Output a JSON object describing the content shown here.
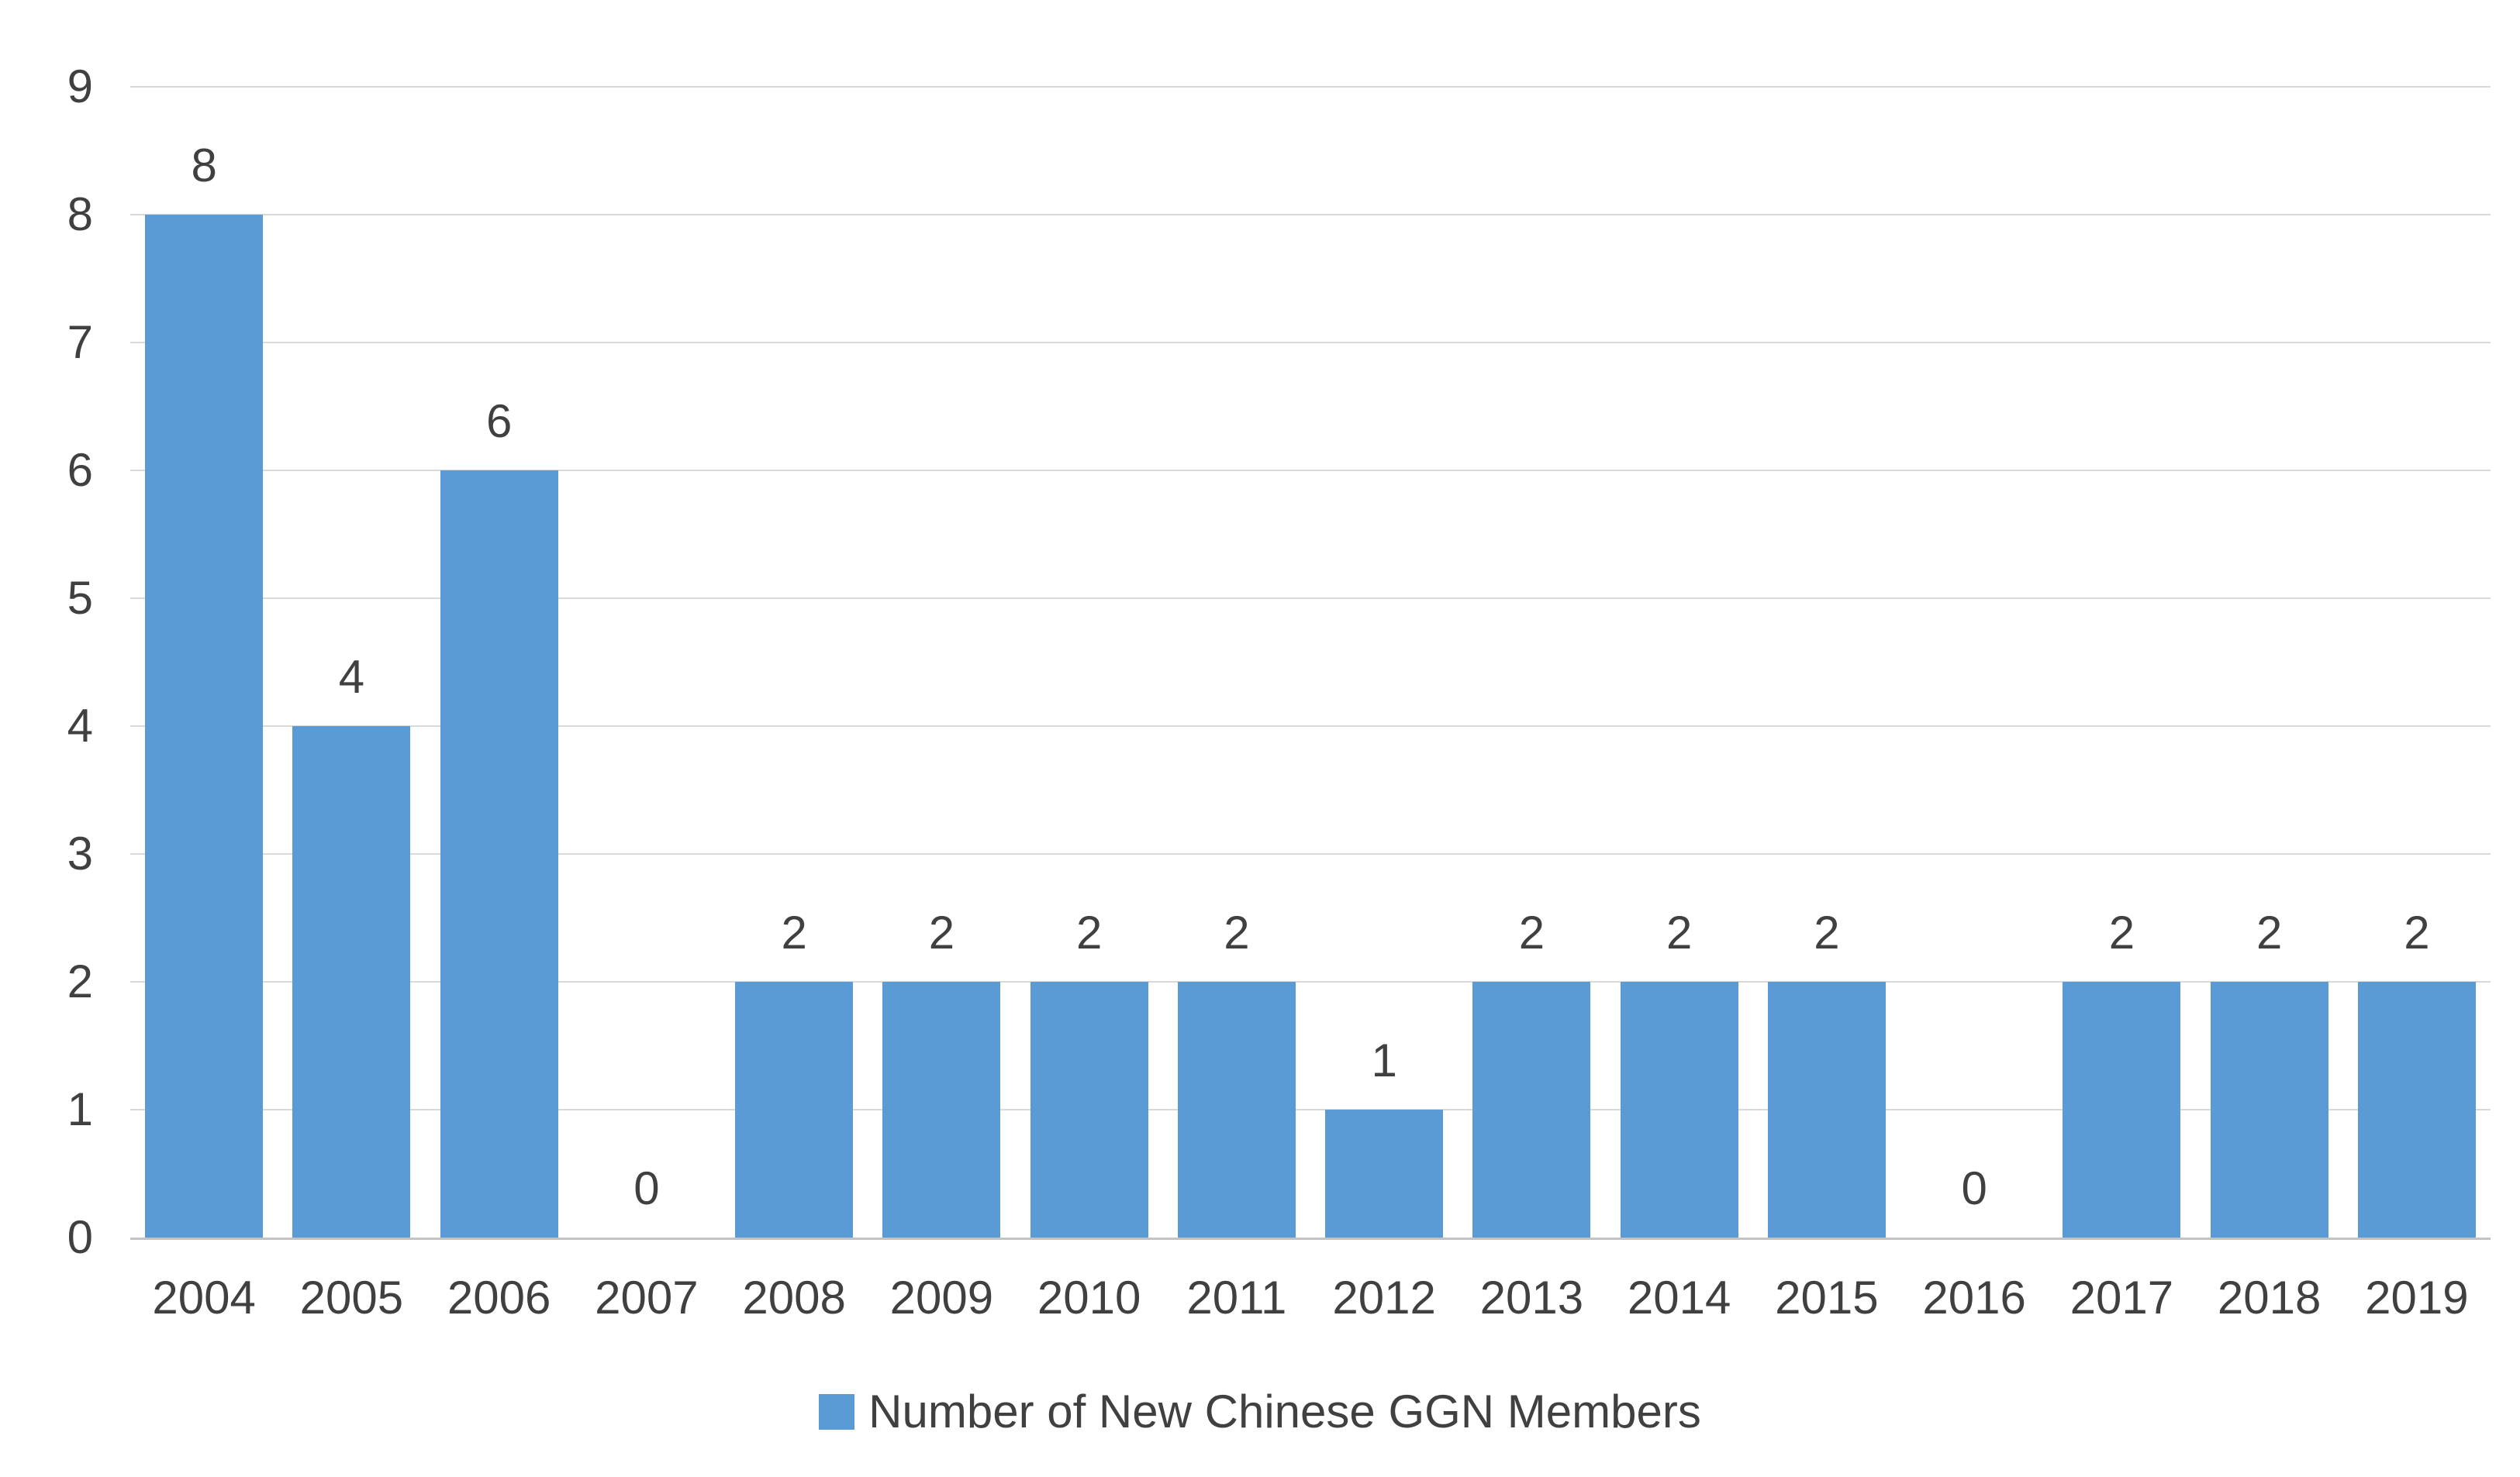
{
  "chart_data": {
    "type": "bar",
    "title": "",
    "categories": [
      "2004",
      "2005",
      "2006",
      "2007",
      "2008",
      "2009",
      "2010",
      "2011",
      "2012",
      "2013",
      "2014",
      "2015",
      "2016",
      "2017",
      "2018",
      "2019"
    ],
    "values": [
      8,
      4,
      6,
      0,
      2,
      2,
      2,
      2,
      1,
      2,
      2,
      2,
      0,
      2,
      2,
      2
    ],
    "data_labels_visible": true,
    "xlabel": "",
    "ylabel": "",
    "ylim": [
      0,
      9
    ],
    "y_ticks": [
      0,
      1,
      2,
      3,
      4,
      5,
      6,
      7,
      8,
      9
    ],
    "grid": true,
    "legend": {
      "label": "Number of New Chinese GGN Members",
      "position": "bottom"
    },
    "colors": {
      "bar": "#5B9BD5",
      "gridline": "#D9D9D9",
      "axis_line": "#C3C3C3",
      "text": "#404040"
    }
  }
}
